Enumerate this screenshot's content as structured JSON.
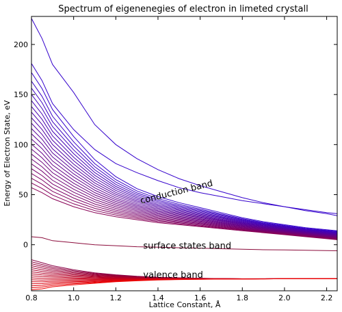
{
  "chart_data": {
    "type": "line",
    "title": "Spectrum of eigenenegies of electron in limeted crystall",
    "xlabel": "Lattice Constant, Å",
    "ylabel": "Energy of Electron State, eV",
    "xlim": [
      0.8,
      2.25
    ],
    "ylim": [
      -46,
      228
    ],
    "xticks": [
      0.8,
      1.0,
      1.2,
      1.4,
      1.6,
      1.8,
      2.0,
      2.2
    ],
    "yticks": [
      0,
      50,
      100,
      150,
      200
    ],
    "xtick_labels": [
      "0.8",
      "1.0",
      "1.2",
      "1.4",
      "1.6",
      "1.8",
      "2.0",
      "2.2"
    ],
    "ytick_labels": [
      "0",
      "50",
      "100",
      "150",
      "200"
    ],
    "grid": false,
    "x": [
      0.8,
      0.85,
      0.9,
      1.0,
      1.1,
      1.2,
      1.3,
      1.4,
      1.5,
      1.6,
      1.7,
      1.8,
      1.9,
      2.0,
      2.1,
      2.2,
      2.25
    ],
    "bands": {
      "conduction_top": [
        226,
        206,
        180,
        152,
        120,
        100,
        86,
        75,
        66,
        59,
        53,
        47,
        42,
        38,
        34,
        31,
        29
      ],
      "conduction_second": [
        181,
        164,
        141,
        115,
        95,
        81,
        72,
        64,
        57,
        52,
        48,
        44,
        41,
        38,
        35,
        32,
        31
      ],
      "conduction_upper": [
        172,
        156,
        135,
        108,
        85,
        68,
        56,
        48,
        42,
        37,
        32,
        27,
        23,
        20,
        17,
        15,
        14
      ],
      "conduction_lower": [
        57,
        52,
        46,
        38,
        32,
        28,
        25,
        22,
        20,
        18,
        16,
        14,
        12,
        10,
        8,
        6,
        5
      ],
      "conduction_count": 22,
      "surface": [
        8,
        7,
        4,
        2,
        0,
        -1,
        -2,
        -2.5,
        -3,
        -3.5,
        -4,
        -4.5,
        -5,
        -5.2,
        -5.5,
        -5.8,
        -6
      ],
      "valence_upper": [
        -15,
        -18,
        -21,
        -25,
        -28,
        -30,
        -31.5,
        -32.5,
        -33,
        -33.5,
        -33.8,
        -34,
        -34,
        -34,
        -34,
        -34,
        -34
      ],
      "valence_lower": [
        -45,
        -44,
        -42,
        -40,
        -38.5,
        -37,
        -36,
        -35.2,
        -34.8,
        -34.5,
        -34.3,
        -34.2,
        -34.1,
        -34,
        -34,
        -34,
        -34
      ],
      "valence_count": 16
    },
    "annotations": [
      {
        "text": "conduction band",
        "x": 1.32,
        "y": 41,
        "rotation": -14
      },
      {
        "text": "surface states band",
        "x": 1.33,
        "y": -4
      },
      {
        "text": "valence band",
        "x": 1.33,
        "y": -33
      }
    ],
    "colors": {
      "conduction_top": "#3300cc",
      "conduction_bottom": "#880055",
      "surface": "#8a0a3a",
      "valence_top": "#880044",
      "valence_bottom": "#ee0000"
    }
  }
}
